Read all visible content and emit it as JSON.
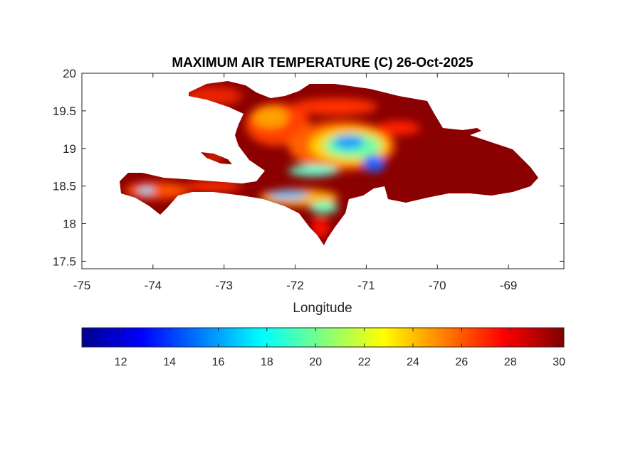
{
  "chart_data": {
    "type": "heatmap",
    "title": "MAXIMUM AIR TEMPERATURE (C) 26-Oct-2025",
    "xlabel": "Longitude",
    "ylabel": "",
    "xlim": [
      -75,
      -68.22
    ],
    "ylim": [
      17.4,
      20
    ],
    "xticks": [
      -75,
      -74,
      -73,
      -72,
      -71,
      -70,
      -69
    ],
    "xtick_labels": [
      "-75",
      "-74",
      "-73",
      "-72",
      "-71",
      "-70",
      "-69"
    ],
    "yticks": [
      17.5,
      18,
      18.5,
      19,
      19.5,
      20
    ],
    "ytick_labels": [
      "17.5",
      "18",
      "18.5",
      "19",
      "19.5",
      "20"
    ],
    "grid": false,
    "colormap": "jet",
    "colorbar": {
      "orientation": "horizontal",
      "placement": "bottom",
      "clim": [
        10.4,
        30.2
      ],
      "ticks": [
        12,
        14,
        16,
        18,
        20,
        22,
        24,
        26,
        28,
        30
      ],
      "tick_labels": [
        "12",
        "14",
        "16",
        "18",
        "20",
        "22",
        "24",
        "26",
        "28",
        "30"
      ]
    },
    "colors": [
      "#00008f",
      "#0000ff",
      "#00ffff",
      "#ffff00",
      "#ff0000",
      "#800000"
    ]
  }
}
